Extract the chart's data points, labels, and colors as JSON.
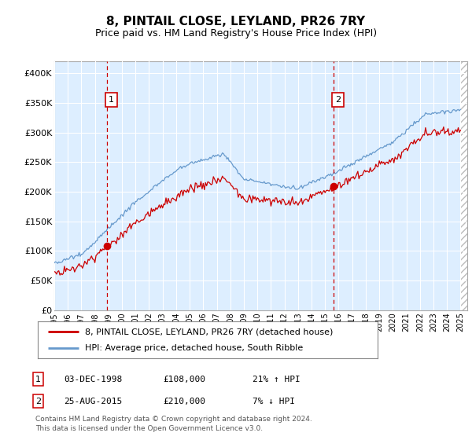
{
  "title": "8, PINTAIL CLOSE, LEYLAND, PR26 7RY",
  "subtitle": "Price paid vs. HM Land Registry's House Price Index (HPI)",
  "ylim": [
    0,
    420000
  ],
  "xlim_start": 1995.0,
  "xlim_end": 2025.5,
  "sale1_date": "03-DEC-1998",
  "sale1_price": 108000,
  "sale1_hpi_change": "21% ↑ HPI",
  "sale1_label": "1",
  "sale1_year": 1998.92,
  "sale2_date": "25-AUG-2015",
  "sale2_price": 210000,
  "sale2_hpi_change": "7% ↓ HPI",
  "sale2_label": "2",
  "sale2_year": 2015.65,
  "legend_line1": "8, PINTAIL CLOSE, LEYLAND, PR26 7RY (detached house)",
  "legend_line2": "HPI: Average price, detached house, South Ribble",
  "footnote": "Contains HM Land Registry data © Crown copyright and database right 2024.\nThis data is licensed under the Open Government Licence v3.0.",
  "price_line_color": "#cc0000",
  "hpi_line_color": "#6699cc",
  "vline_color": "#cc0000",
  "plot_bg_color": "#ddeeff",
  "box_color": "#cc0000",
  "grid_color": "#ffffff",
  "hatch_color": "#cccccc"
}
